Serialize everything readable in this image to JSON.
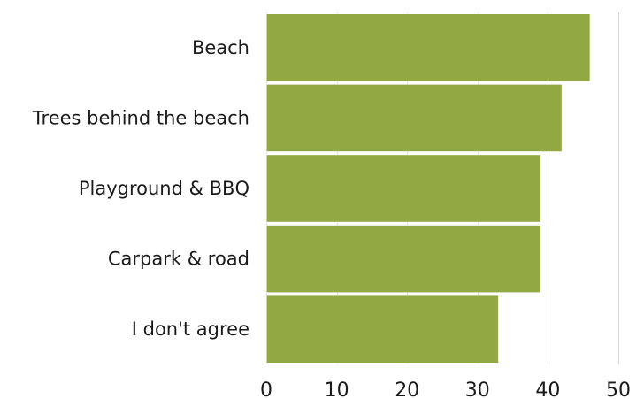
{
  "chart_data": {
    "type": "bar",
    "orientation": "horizontal",
    "title": "",
    "xlabel": "",
    "ylabel": "",
    "categories": [
      "Beach",
      "Trees behind the beach",
      "Playground & BBQ",
      "Carpark & road",
      "I don't agree"
    ],
    "values": [
      46,
      42,
      39,
      39,
      33
    ],
    "xlim": [
      0,
      50
    ],
    "xticks": [
      0,
      10,
      20,
      30,
      40,
      50
    ],
    "grid": "vertical",
    "legend": "none",
    "bar_color": "#92a843",
    "bar_edge_color": "#ffffff"
  }
}
